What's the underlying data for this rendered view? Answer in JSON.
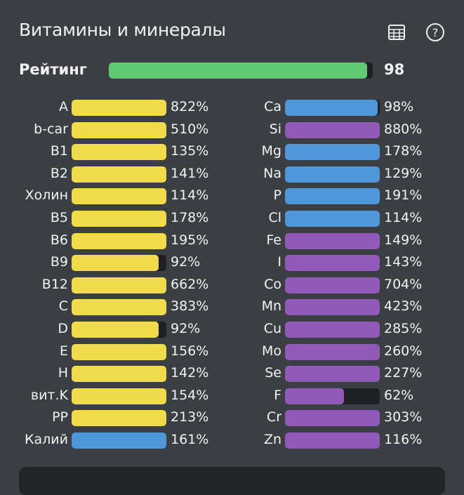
{
  "header": {
    "title": "Витамины и минералы",
    "table_icon": "table-icon",
    "help_icon": "help-circle-icon"
  },
  "rating": {
    "label": "Рейтинг",
    "value": "98",
    "percent": 98,
    "color": "#5ec872"
  },
  "colors": {
    "vitamin": "#f0dc4a",
    "mineral": "#4f97d8",
    "trace": "#9159b8",
    "track": "#1e2024"
  },
  "left": [
    {
      "label": "A",
      "value": "822%",
      "pct": 822,
      "color": "#f0dc4a"
    },
    {
      "label": "b-car",
      "value": "510%",
      "pct": 510,
      "color": "#f0dc4a"
    },
    {
      "label": "B1",
      "value": "135%",
      "pct": 135,
      "color": "#f0dc4a"
    },
    {
      "label": "B2",
      "value": "141%",
      "pct": 141,
      "color": "#f0dc4a"
    },
    {
      "label": "Холин",
      "value": "114%",
      "pct": 114,
      "color": "#f0dc4a"
    },
    {
      "label": "B5",
      "value": "178%",
      "pct": 178,
      "color": "#f0dc4a"
    },
    {
      "label": "B6",
      "value": "195%",
      "pct": 195,
      "color": "#f0dc4a"
    },
    {
      "label": "B9",
      "value": "92%",
      "pct": 92,
      "color": "#f0dc4a"
    },
    {
      "label": "B12",
      "value": "662%",
      "pct": 662,
      "color": "#f0dc4a"
    },
    {
      "label": "C",
      "value": "383%",
      "pct": 383,
      "color": "#f0dc4a"
    },
    {
      "label": "D",
      "value": "92%",
      "pct": 92,
      "color": "#f0dc4a"
    },
    {
      "label": "E",
      "value": "156%",
      "pct": 156,
      "color": "#f0dc4a"
    },
    {
      "label": "H",
      "value": "142%",
      "pct": 142,
      "color": "#f0dc4a"
    },
    {
      "label": "вит.K",
      "value": "154%",
      "pct": 154,
      "color": "#f0dc4a"
    },
    {
      "label": "PP",
      "value": "213%",
      "pct": 213,
      "color": "#f0dc4a"
    },
    {
      "label": "Калий",
      "value": "161%",
      "pct": 161,
      "color": "#4f97d8"
    }
  ],
  "right": [
    {
      "label": "Ca",
      "value": "98%",
      "pct": 98,
      "color": "#4f97d8"
    },
    {
      "label": "Si",
      "value": "880%",
      "pct": 880,
      "color": "#9159b8"
    },
    {
      "label": "Mg",
      "value": "178%",
      "pct": 178,
      "color": "#4f97d8"
    },
    {
      "label": "Na",
      "value": "129%",
      "pct": 129,
      "color": "#4f97d8"
    },
    {
      "label": "P",
      "value": "191%",
      "pct": 191,
      "color": "#4f97d8"
    },
    {
      "label": "Cl",
      "value": "114%",
      "pct": 114,
      "color": "#4f97d8"
    },
    {
      "label": "Fe",
      "value": "149%",
      "pct": 149,
      "color": "#9159b8"
    },
    {
      "label": "I",
      "value": "143%",
      "pct": 143,
      "color": "#9159b8"
    },
    {
      "label": "Co",
      "value": "704%",
      "pct": 704,
      "color": "#9159b8"
    },
    {
      "label": "Mn",
      "value": "423%",
      "pct": 423,
      "color": "#9159b8"
    },
    {
      "label": "Cu",
      "value": "285%",
      "pct": 285,
      "color": "#9159b8"
    },
    {
      "label": "Mo",
      "value": "260%",
      "pct": 260,
      "color": "#9159b8"
    },
    {
      "label": "Se",
      "value": "227%",
      "pct": 227,
      "color": "#9159b8"
    },
    {
      "label": "F",
      "value": "62%",
      "pct": 62,
      "color": "#9159b8"
    },
    {
      "label": "Cr",
      "value": "303%",
      "pct": 303,
      "color": "#9159b8"
    },
    {
      "label": "Zn",
      "value": "116%",
      "pct": 116,
      "color": "#9159b8"
    }
  ]
}
